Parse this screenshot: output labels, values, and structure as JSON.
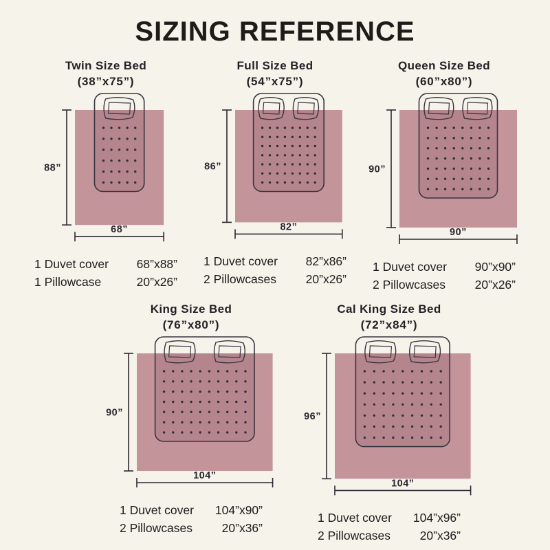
{
  "page": {
    "title": "SIZING REFERENCE",
    "colors": {
      "background": "#f6f3ea",
      "duvet_pink": "#c4949b",
      "bed_overlap_shade": "rgba(84,38,50,0.13)",
      "outline": "#39343e",
      "dot": "#342e39",
      "dimension_line": "#2c2831",
      "text": "#1c1c1c"
    }
  },
  "beds": [
    {
      "name": "Twin Size Bed",
      "size_label": "(38”x75”)",
      "height_label": "88”",
      "width_label": "68”",
      "duvet_in": [
        68,
        88
      ],
      "bed_in": [
        38,
        75
      ],
      "pillows": 1,
      "dots": [
        5,
        6
      ],
      "items": [
        {
          "label": "1 Duvet cover",
          "size": "68”x88”"
        },
        {
          "label": "1 Pillowcase",
          "size": "20”x26”"
        }
      ]
    },
    {
      "name": "Full Size Bed",
      "size_label": "(54”x75”)",
      "height_label": "86”",
      "width_label": "82”",
      "duvet_in": [
        82,
        86
      ],
      "bed_in": [
        54,
        75
      ],
      "pillows": 2,
      "dots": [
        8,
        7
      ],
      "items": [
        {
          "label": "1 Duvet cover",
          "size": "82”x86”"
        },
        {
          "label": "2 Pillowcases",
          "size": "20”x26”"
        }
      ]
    },
    {
      "name": "Queen Size Bed",
      "size_label": "(60”x80”)",
      "height_label": "90”",
      "width_label": "90”",
      "duvet_in": [
        90,
        90
      ],
      "bed_in": [
        60,
        80
      ],
      "pillows": 2,
      "dots": [
        8,
        7
      ],
      "items": [
        {
          "label": "1 Duvet cover",
          "size": "90”x90”"
        },
        {
          "label": "2 Pillowcases",
          "size": "20”x26”"
        }
      ]
    },
    {
      "name": "King Size Bed",
      "size_label": "(76”x80”)",
      "height_label": "90”",
      "width_label": "104”",
      "duvet_in": [
        104,
        90
      ],
      "bed_in": [
        76,
        80
      ],
      "pillows": 2,
      "dots": [
        10,
        7
      ],
      "items": [
        {
          "label": "1 Duvet cover",
          "size": "104”x90”"
        },
        {
          "label": "2 Pillowcases",
          "size": "20”x36”"
        }
      ]
    },
    {
      "name": "Cal King Size Bed",
      "size_label": "(72”x84”)",
      "height_label": "96”",
      "width_label": "104”",
      "duvet_in": [
        104,
        96
      ],
      "bed_in": [
        72,
        84
      ],
      "pillows": 2,
      "dots": [
        9,
        7
      ],
      "items": [
        {
          "label": "1 Duvet cover",
          "size": "104”x96”"
        },
        {
          "label": "2 Pillowcases",
          "size": "20”x36”"
        }
      ]
    }
  ]
}
